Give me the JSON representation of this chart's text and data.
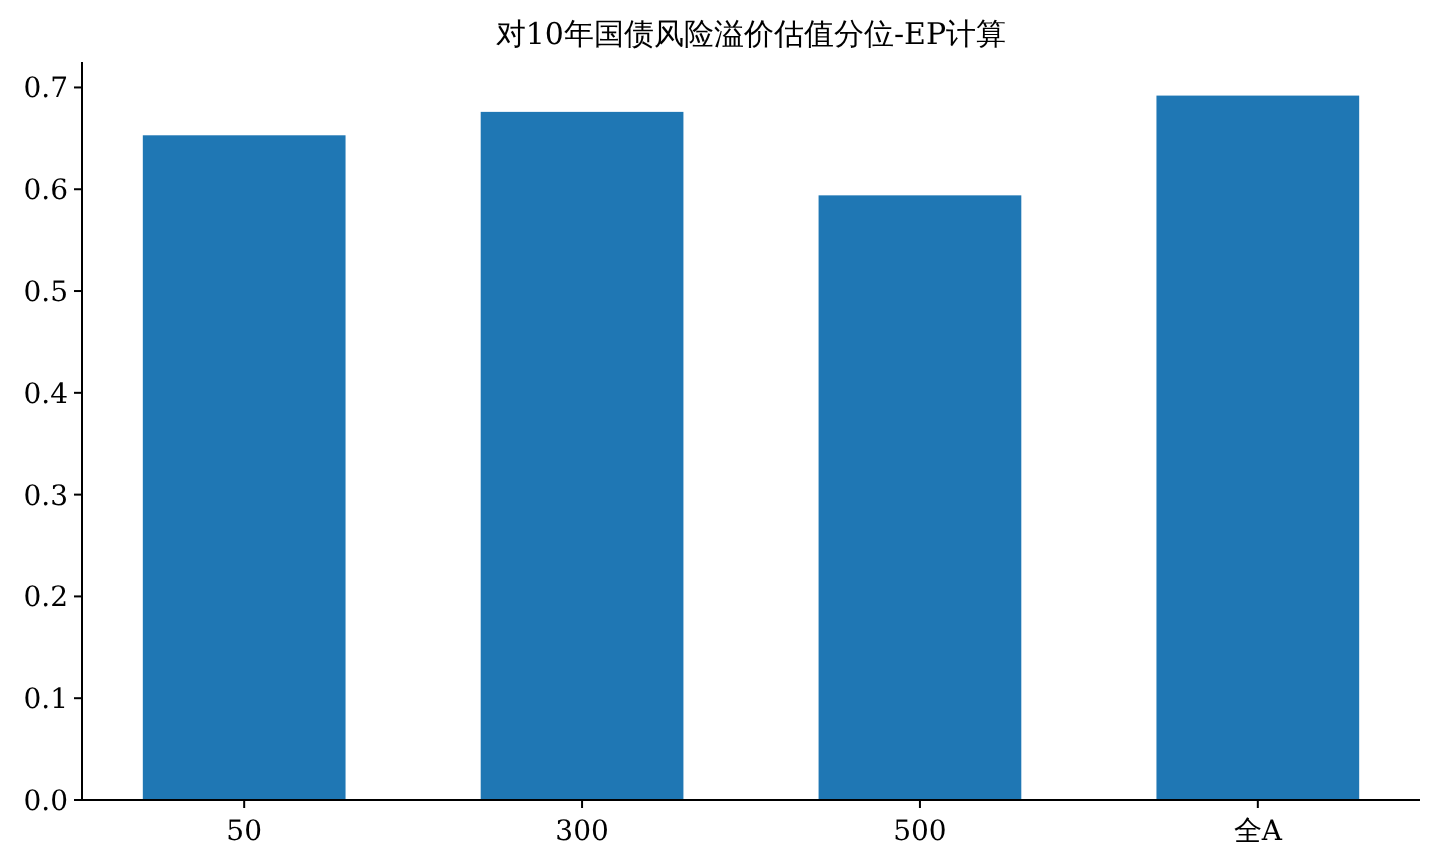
{
  "chart_data": {
    "type": "bar",
    "title": "对10年国债风险溢价估值分位-EP计算",
    "categories": [
      "50",
      "300",
      "500",
      "全A"
    ],
    "values": [
      0.653,
      0.676,
      0.594,
      0.692
    ],
    "color": "#1f77b4",
    "ylim": [
      0,
      0.725
    ],
    "yticks": [
      {
        "value": 0,
        "label": "0.0"
      },
      0.1,
      0.2,
      0.3,
      0.4,
      0.5,
      0.6,
      0.7
    ],
    "grid": false
  }
}
